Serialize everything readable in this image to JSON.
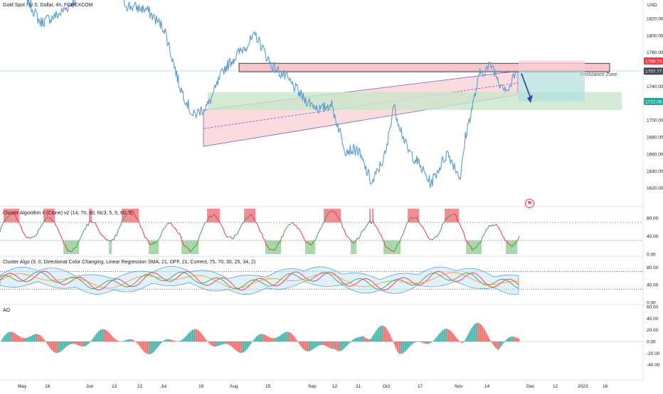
{
  "chart_data": [
    {
      "type": "line",
      "title": "Gold Spot / U.S. Dollar, 4h, FOREXCOM",
      "ylabel": "USD",
      "ylim": [
        1603,
        1835
      ],
      "y_ticks": [
        "1820.00",
        "1800.00",
        "1780.00",
        "1760.00",
        "1740.00",
        "1720.00",
        "1700.00",
        "1680.00",
        "1660.00",
        "1640.00",
        "1620.00"
      ],
      "x_ticks": [
        "May",
        "16",
        "Jun",
        "13",
        "22",
        "Jul",
        "18",
        "Aug",
        "15",
        "Sep",
        "12",
        "21",
        "Oct",
        "17",
        "Nov",
        "14",
        "Dec",
        "12",
        "2023",
        "16"
      ],
      "series": [
        {
          "x": [
            "May 2",
            "May 9",
            "May 16",
            "May 25",
            "Jun 1",
            "Jun 10",
            "Jun 16",
            "Jun 24",
            "Jul 1",
            "Jul 8",
            "Jul 14",
            "Jul 21",
            "Jul 28",
            "Aug 4",
            "Aug 10",
            "Aug 16",
            "Aug 22",
            "Aug 29",
            "Sep 5",
            "Sep 9",
            "Sep 15",
            "Sep 20",
            "Sep 26",
            "Oct 1",
            "Oct 4",
            "Oct 10",
            "Oct 14",
            "Oct 20",
            "Oct 27",
            "Nov 2",
            "Nov 4",
            "Nov 10",
            "Nov 15",
            "Nov 18",
            "Nov 22",
            "Nov 25"
          ],
          "values": [
            1855,
            1815,
            1825,
            1850,
            1845,
            1860,
            1835,
            1830,
            1808,
            1740,
            1705,
            1718,
            1760,
            1782,
            1800,
            1765,
            1750,
            1725,
            1712,
            1720,
            1665,
            1665,
            1625,
            1662,
            1718,
            1665,
            1652,
            1625,
            1662,
            1632,
            1680,
            1755,
            1765,
            1745,
            1736,
            1758
          ]
        }
      ],
      "annotations": {
        "resistance_label": "Resistance Zone",
        "resistance_zone": [
          1757,
          1767
        ],
        "short_target": 1722.06,
        "price_labels": [
          "1769.74",
          "1757.77",
          "1722.06"
        ],
        "price_label_colors": [
          "#f23645",
          "#434651",
          "#26a69a"
        ]
      }
    },
    {
      "type": "line",
      "title": "Cluster Algorithm II (Clone) v2 (14, 70, 30, hlc3, 5, 5, 60, 5)",
      "ylim": [
        0,
        100
      ],
      "y_ticks": [
        "80.00",
        "40.00",
        "0.00"
      ],
      "levels": [
        70,
        30
      ]
    },
    {
      "type": "line",
      "title": "Cluster Algo (9, 0, Directional Color Changing, Linear Regression SMA, 21, OFF, 21,  Current, 75, 70, 30, 25, 34, 2)",
      "ylim": [
        0,
        100
      ],
      "y_ticks": [
        "80.00",
        "40.00",
        "0.00"
      ],
      "levels": [
        70,
        30
      ]
    },
    {
      "type": "bar",
      "title": "AO",
      "ylim": [
        -60,
        60
      ],
      "y_ticks": [
        "60.00",
        "40.00",
        "20.00",
        "0.00",
        "-20.00",
        "-40.00"
      ]
    }
  ],
  "colors": {
    "price": "#5b9bd5",
    "channel_fill": "#f8c7cc",
    "channel_edge": "#7e57c2",
    "resistance_fill": "#f6c1c6",
    "target_fill": "#c8e6c9",
    "risk_fill": "#ffcdd2",
    "reward_fill": "#b2dfdb",
    "osc_red": "#f23645",
    "osc_green": "#26a69a",
    "ao_up": "#26a69a",
    "ao_down": "#ef5350"
  },
  "icons": {
    "alert": "bell-icon"
  }
}
